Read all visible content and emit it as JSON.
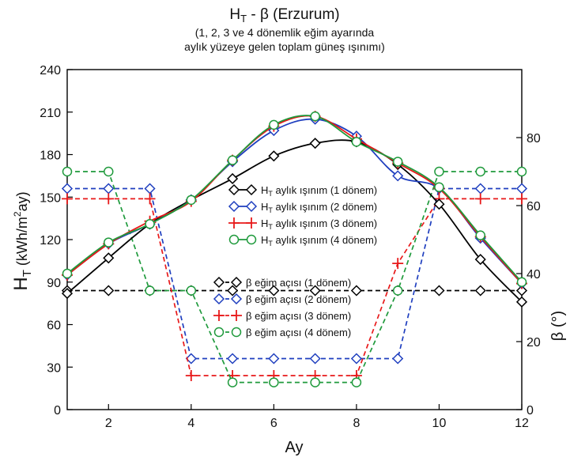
{
  "chart_data": {
    "type": "line",
    "title_main": "H",
    "title_sub_T": "T",
    "title_rest": " - β (Erzurum)",
    "subtitle_line1": "(1, 2, 3 ve 4 dönemlik eğim ayarında",
    "subtitle_line2": "aylık yüzeye gelen toplam güneş ışınımı)",
    "xlabel": "Ay",
    "ylabel_left": "H",
    "ylabel_left_sub": "T",
    "ylabel_left_unit_a": " (kWh/m",
    "ylabel_left_sup": "2",
    "ylabel_left_unit_b": "ay)",
    "ylabel_right": "β (°)",
    "xlim": [
      1,
      12
    ],
    "x_ticks": [
      "2",
      "4",
      "6",
      "8",
      "10",
      "12"
    ],
    "ylim_left": [
      0,
      240
    ],
    "y_left_ticks": [
      "0",
      "30",
      "60",
      "90",
      "120",
      "150",
      "180",
      "210",
      "240"
    ],
    "ylim_right": [
      0,
      100
    ],
    "y_right_ticks": [
      "0",
      "20",
      "40",
      "60",
      "80"
    ],
    "grid": false,
    "x": [
      1,
      2,
      3,
      4,
      5,
      6,
      7,
      8,
      9,
      10,
      11,
      12
    ],
    "radiation_series": [
      {
        "label_a": "H",
        "label_sub": "T",
        "label_b": " aylık ışınım (1 dönem)",
        "color": "#000000",
        "marker": "diamond",
        "values": [
          82,
          107,
          131,
          148,
          163,
          179,
          188,
          189,
          173,
          145,
          106,
          76
        ]
      },
      {
        "label_a": "H",
        "label_sub": "T",
        "label_b": " aylık ışınım (2 dönem)",
        "color": "#1f3fbf",
        "marker": "diamond",
        "values": [
          95,
          117,
          131,
          148,
          175,
          197,
          205,
          193,
          165,
          156,
          121,
          89
        ]
      },
      {
        "label_a": "H",
        "label_sub": "T",
        "label_b": " aylık ışınım (3 dönem)",
        "color": "#e8191a",
        "marker": "plus",
        "values": [
          95,
          117,
          133,
          147,
          176,
          200,
          207,
          191,
          174,
          156,
          122,
          89
        ]
      },
      {
        "label_a": "H",
        "label_sub": "T",
        "label_b": " aylık ışınım (4 dönem)",
        "color": "#1f9a3c",
        "marker": "circle",
        "values": [
          96,
          118,
          131,
          148,
          176,
          201,
          207,
          189,
          175,
          157,
          123,
          90
        ]
      }
    ],
    "angle_series": [
      {
        "label": "β eğim açısı (1 dönem)",
        "color": "#000000",
        "marker": "diamond",
        "values": [
          35,
          35,
          35,
          35,
          35,
          35,
          35,
          35,
          35,
          35,
          35,
          35
        ]
      },
      {
        "label": "β eğim açısı (2 dönem)",
        "color": "#1f3fbf",
        "marker": "diamond",
        "values": [
          65,
          65,
          65,
          15,
          15,
          15,
          15,
          15,
          15,
          65,
          65,
          65
        ]
      },
      {
        "label": "β eğim açısı (3 dönem)",
        "color": "#e8191a",
        "marker": "plus",
        "values": [
          62,
          62,
          62,
          10,
          10,
          10,
          10,
          10,
          43,
          62,
          62,
          62
        ]
      },
      {
        "label": "β eğim açısı (4 dönem)",
        "color": "#1f9a3c",
        "marker": "circle",
        "values": [
          70,
          70,
          35,
          35,
          8,
          8,
          8,
          8,
          35,
          70,
          70,
          70
        ]
      }
    ]
  }
}
